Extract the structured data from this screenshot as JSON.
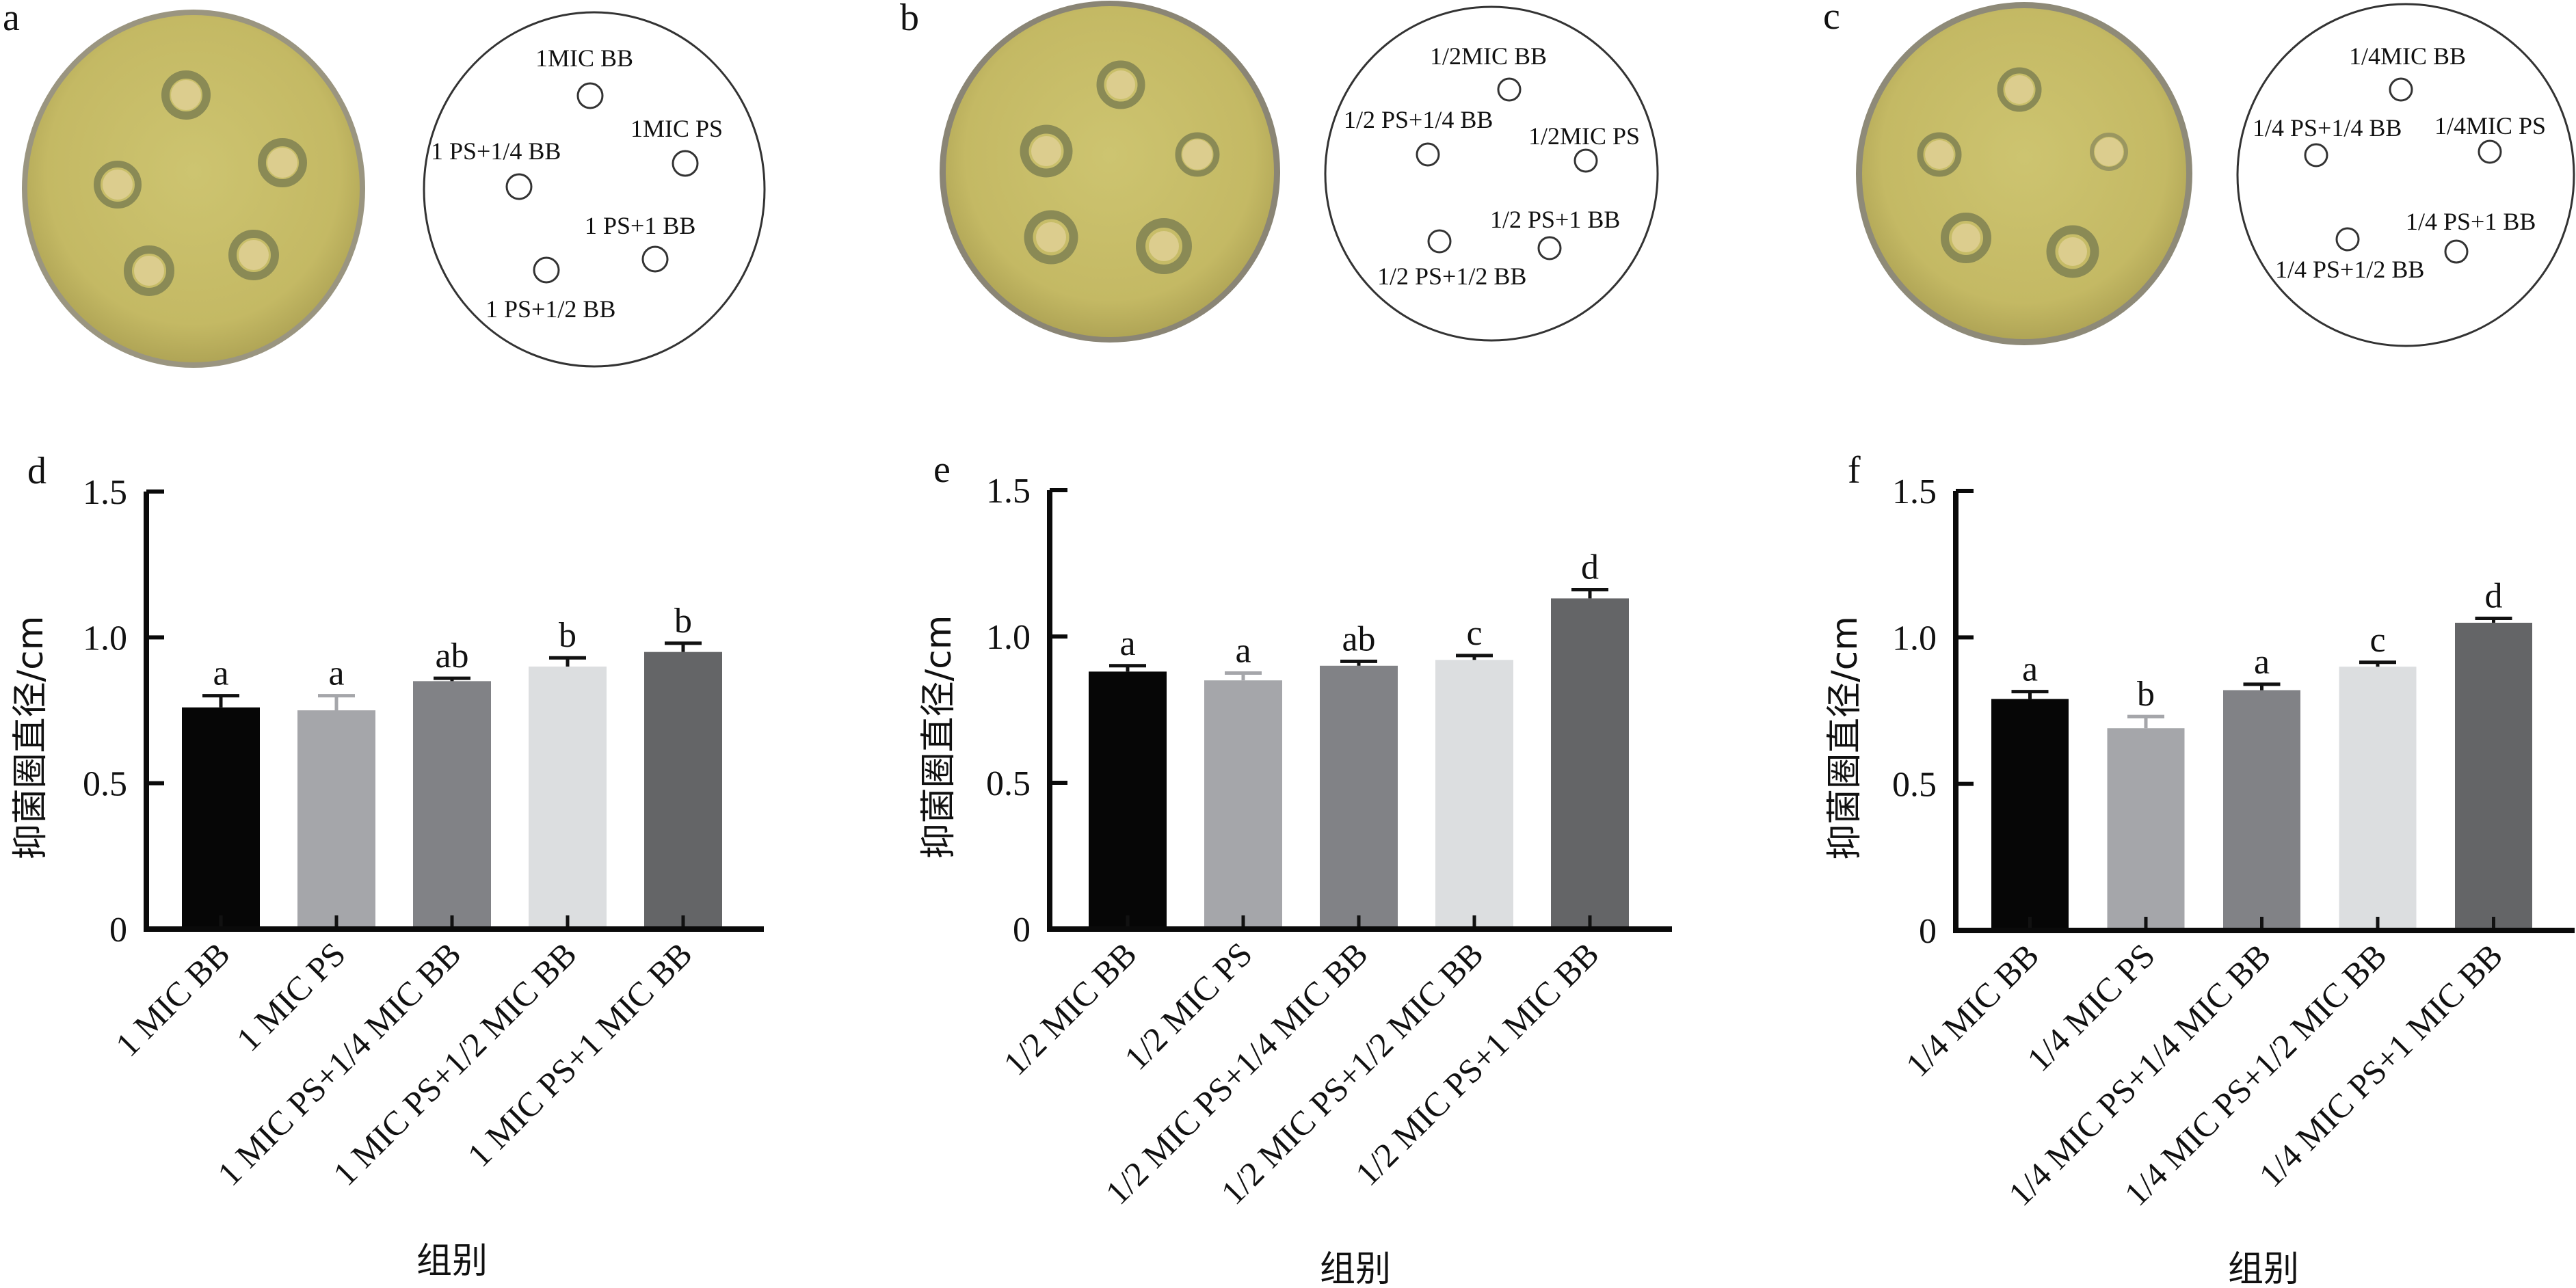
{
  "figure": {
    "plate_colors": {
      "agar": "#c9bf6a",
      "agar_edge": "#b8ae58",
      "rim": "#8c8878",
      "well_fill": "#dccd8e",
      "halo": "#8a8a55"
    },
    "plates": [
      {
        "panel_label": "a",
        "wells": 5,
        "diagram_labels": [
          "1MIC BB",
          "1MIC PS",
          "1 PS+1/4 BB",
          "1 PS+1 BB",
          "1 PS+1/2 BB"
        ]
      },
      {
        "panel_label": "b",
        "wells": 5,
        "diagram_labels": [
          "1/2MIC BB",
          "1/2 PS+1/4 BB",
          "1/2MIC PS",
          "1/2 PS+1 BB",
          "1/2 PS+1/2 BB"
        ]
      },
      {
        "panel_label": "c",
        "wells": 5,
        "diagram_labels": [
          "1/4MIC BB",
          "1/4 PS+1/4 BB",
          "1/4MIC PS",
          "1/4 PS+1 BB",
          "1/4 PS+1/2 BB"
        ]
      }
    ]
  },
  "chart_data": [
    {
      "panel_label": "d",
      "type": "bar",
      "title": "",
      "xlabel": "组别",
      "ylabel": "抑菌圈直径/cm",
      "ylim": [
        0,
        1.5
      ],
      "yticks": [
        0,
        0.5,
        1.0,
        1.5
      ],
      "ytick_labels": [
        "0",
        "0.5",
        "1.0",
        "1.5"
      ],
      "grid": false,
      "legend": "none",
      "categories": [
        "1 MIC BB",
        "1 MIC PS",
        "1 MIC PS+1/4 MIC BB",
        "1 MIC PS+1/2 MIC BB",
        "1 MIC PS+1 MIC BB"
      ],
      "values": [
        0.76,
        0.75,
        0.85,
        0.9,
        0.95
      ],
      "errors": [
        0.04,
        0.05,
        0.01,
        0.03,
        0.03
      ],
      "significance": [
        "a",
        "a",
        "ab",
        "b",
        "b"
      ],
      "colors": [
        "#060606",
        "#a5a6aa",
        "#818286",
        "#dcdee0",
        "#646567"
      ]
    },
    {
      "panel_label": "e",
      "type": "bar",
      "title": "",
      "xlabel": "组别",
      "ylabel": "抑菌圈直径/cm",
      "ylim": [
        0,
        1.5
      ],
      "yticks": [
        0,
        0.5,
        1.0,
        1.5
      ],
      "ytick_labels": [
        "0",
        "0.5",
        "1.0",
        "1.5"
      ],
      "grid": false,
      "legend": "none",
      "categories": [
        "1/2 MIC BB",
        "1/2 MIC PS",
        "1/2 MIC PS+1/4 MIC BB",
        "1/2 MIC PS+1/2 MIC BB",
        "1/2 MIC PS+1 MIC BB"
      ],
      "values": [
        0.88,
        0.85,
        0.9,
        0.92,
        1.13
      ],
      "errors": [
        0.02,
        0.025,
        0.015,
        0.015,
        0.03
      ],
      "significance": [
        "a",
        "a",
        "ab",
        "c",
        "d"
      ],
      "colors": [
        "#060606",
        "#a5a6aa",
        "#818286",
        "#dcdee0",
        "#646567"
      ]
    },
    {
      "panel_label": "f",
      "type": "bar",
      "title": "",
      "xlabel": "组别",
      "ylabel": "抑菌圈直径/cm",
      "ylim": [
        0,
        1.5
      ],
      "yticks": [
        0,
        0.5,
        1.0,
        1.5
      ],
      "ytick_labels": [
        "0",
        "0.5",
        "1.0",
        "1.5"
      ],
      "grid": false,
      "legend": "none",
      "categories": [
        "1/4 MIC BB",
        "1/4 MIC PS",
        "1/4 MIC PS+1/4 MIC BB",
        "1/4 MIC PS+1/2 MIC BB",
        "1/4 MIC PS+1 MIC BB"
      ],
      "values": [
        0.79,
        0.69,
        0.82,
        0.9,
        1.05
      ],
      "errors": [
        0.025,
        0.04,
        0.02,
        0.015,
        0.015
      ],
      "significance": [
        "a",
        "b",
        "a",
        "c",
        "d"
      ],
      "colors": [
        "#060606",
        "#a5a6aa",
        "#818286",
        "#dcdee0",
        "#646567"
      ]
    }
  ]
}
